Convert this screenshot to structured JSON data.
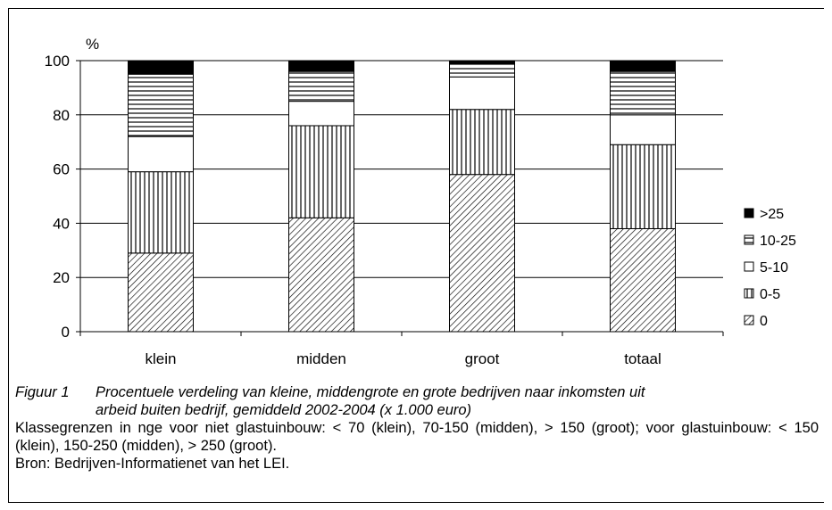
{
  "chart_data": {
    "type": "bar",
    "stacked": true,
    "unit_label": "%",
    "ylim": [
      0,
      100
    ],
    "yticks": [
      "0",
      "20",
      "40",
      "60",
      "80",
      "100"
    ],
    "categories": [
      "klein",
      "midden",
      "groot",
      "totaal"
    ],
    "grid": true,
    "legend_position": "right",
    "series": [
      {
        "name": "0",
        "values": [
          29,
          42,
          58,
          38
        ],
        "pattern": "diagonal"
      },
      {
        "name": "0-5",
        "values": [
          30,
          34,
          24,
          31
        ],
        "pattern": "vertical"
      },
      {
        "name": "5-10",
        "values": [
          13,
          9,
          12,
          11
        ],
        "pattern": "white"
      },
      {
        "name": "10-25",
        "values": [
          23,
          11,
          5,
          16
        ],
        "pattern": "horizontal"
      },
      {
        "name": ">25",
        "values": [
          5,
          4,
          1,
          4
        ],
        "pattern": "solid"
      }
    ]
  },
  "caption": {
    "figure_number": "Figuur 1",
    "figure_title_line1": "Procentuele verdeling van kleine, middengrote en grote bedrijven naar inkomsten uit",
    "figure_title_line2": "arbeid buiten bedrijf, gemiddeld 2002-2004 (x 1.000 euro)",
    "note": "Klassegrenzen in nge voor niet glastuinbouw: < 70 (klein), 70-150 (midden), > 150 (groot); voor glastuinbouw: < 150 (klein), 150-250 (midden), > 250 (groot).",
    "source": "Bron: Bedrijven-Informatienet van het LEI."
  }
}
